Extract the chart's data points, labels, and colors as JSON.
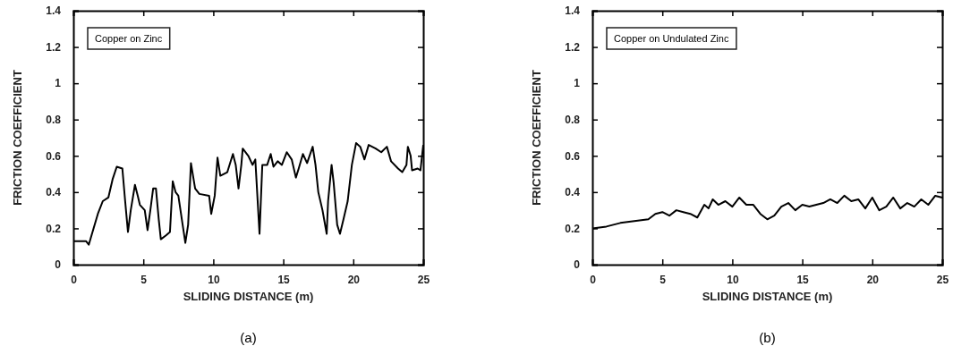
{
  "chart_data": [
    {
      "type": "line",
      "xlabel": "SLIDING DISTANCE (m)",
      "ylabel": "FRICTION COEFFICIENT",
      "annotations": [
        "Copper on Zinc",
        "(a)"
      ],
      "xlim": [
        0,
        25
      ],
      "xticks": [
        0,
        5,
        10,
        15,
        20,
        25
      ],
      "ylim": [
        0,
        1.4
      ],
      "yticks": [
        0,
        0.2,
        0.4,
        0.6,
        0.8,
        1,
        1.2,
        1.4
      ],
      "marker": "none",
      "line_style": "solid",
      "series": [
        {
          "color": "#000000",
          "x": [
            0,
            0.9,
            1.1,
            1.75,
            2.1,
            2.5,
            2.8,
            3.1,
            3.5,
            3.7,
            3.9,
            4.1,
            4.4,
            4.6,
            4.75,
            5.1,
            5.3,
            5.5,
            5.7,
            5.9,
            6.1,
            6.25,
            6.6,
            6.9,
            7.1,
            7.3,
            7.5,
            7.75,
            8.0,
            8.2,
            8.4,
            8.7,
            9.0,
            9.7,
            9.85,
            10.1,
            10.3,
            10.5,
            11.0,
            11.4,
            11.6,
            11.8,
            12.0,
            12.1,
            12.5,
            12.8,
            13.0,
            13.3,
            13.5,
            13.85,
            14.1,
            14.3,
            14.6,
            14.9,
            15.25,
            15.6,
            15.9,
            16.1,
            16.4,
            16.7,
            17.1,
            17.3,
            17.5,
            17.8,
            18.1,
            18.2,
            18.45,
            18.6,
            18.85,
            19.05,
            19.3,
            19.6,
            19.9,
            20.2,
            20.5,
            20.8,
            21.1,
            21.6,
            22.0,
            22.4,
            22.7,
            23.2,
            23.5,
            23.8,
            23.9,
            24.1,
            24.2,
            24.6,
            24.8,
            25
          ],
          "values": [
            0.13,
            0.13,
            0.11,
            0.28,
            0.35,
            0.37,
            0.47,
            0.54,
            0.53,
            0.35,
            0.18,
            0.3,
            0.44,
            0.38,
            0.33,
            0.3,
            0.19,
            0.3,
            0.42,
            0.42,
            0.25,
            0.14,
            0.16,
            0.18,
            0.46,
            0.4,
            0.38,
            0.25,
            0.12,
            0.22,
            0.56,
            0.42,
            0.39,
            0.38,
            0.28,
            0.38,
            0.59,
            0.49,
            0.51,
            0.61,
            0.55,
            0.42,
            0.55,
            0.64,
            0.6,
            0.55,
            0.58,
            0.17,
            0.55,
            0.55,
            0.61,
            0.54,
            0.57,
            0.55,
            0.62,
            0.58,
            0.48,
            0.53,
            0.61,
            0.56,
            0.65,
            0.55,
            0.4,
            0.3,
            0.17,
            0.35,
            0.55,
            0.45,
            0.22,
            0.17,
            0.25,
            0.35,
            0.55,
            0.67,
            0.65,
            0.58,
            0.66,
            0.64,
            0.62,
            0.65,
            0.57,
            0.53,
            0.51,
            0.55,
            0.65,
            0.6,
            0.52,
            0.53,
            0.52,
            0.66
          ]
        }
      ]
    },
    {
      "type": "line",
      "xlabel": "SLIDING DISTANCE (m)",
      "ylabel": "FRICTION COEFFICIENT",
      "annotations": [
        "Copper on Undulated Zinc",
        "(b)"
      ],
      "xlim": [
        0,
        25
      ],
      "xticks": [
        0,
        5,
        10,
        15,
        20,
        25
      ],
      "ylim": [
        0,
        1.4
      ],
      "yticks": [
        0,
        0.2,
        0.4,
        0.6,
        0.8,
        1,
        1.2,
        1.4
      ],
      "marker": "none",
      "line_style": "solid",
      "series": [
        {
          "color": "#000000",
          "x": [
            0,
            1,
            2,
            3,
            4,
            4.5,
            5,
            5.5,
            6,
            6.5,
            7,
            7.5,
            8,
            8.3,
            8.6,
            9,
            9.5,
            10,
            10.5,
            11,
            11.5,
            12,
            12.5,
            13,
            13.5,
            14,
            14.5,
            15,
            15.5,
            16,
            16.5,
            17,
            17.5,
            18,
            18.5,
            19,
            19.5,
            20,
            20.5,
            21,
            21.5,
            22,
            22.5,
            23,
            23.5,
            24,
            24.5,
            25
          ],
          "values": [
            0.2,
            0.21,
            0.23,
            0.24,
            0.25,
            0.28,
            0.29,
            0.27,
            0.3,
            0.29,
            0.28,
            0.26,
            0.33,
            0.31,
            0.36,
            0.33,
            0.35,
            0.32,
            0.37,
            0.33,
            0.33,
            0.28,
            0.25,
            0.27,
            0.32,
            0.34,
            0.3,
            0.33,
            0.32,
            0.33,
            0.34,
            0.36,
            0.34,
            0.38,
            0.35,
            0.36,
            0.31,
            0.37,
            0.3,
            0.32,
            0.37,
            0.31,
            0.34,
            0.32,
            0.36,
            0.33,
            0.38,
            0.37
          ]
        }
      ]
    }
  ]
}
